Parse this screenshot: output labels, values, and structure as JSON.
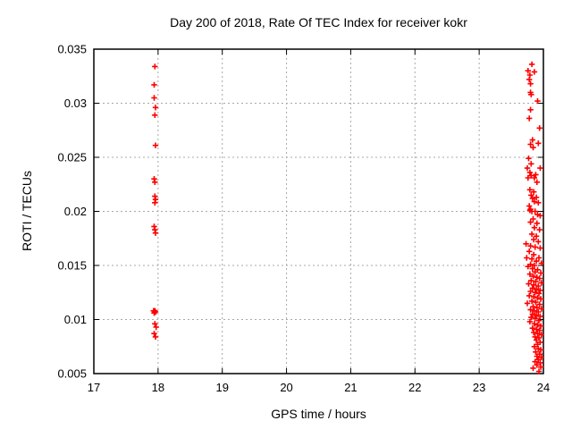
{
  "chart_data": {
    "type": "scatter",
    "title": "Day 200 of 2018, Rate Of TEC Index for receiver kokr",
    "xlabel": "GPS time / hours",
    "ylabel": "ROTI / TECUs",
    "xlim": [
      17,
      24
    ],
    "ylim": [
      0.005,
      0.035
    ],
    "xticks": [
      17,
      18,
      19,
      20,
      21,
      22,
      23,
      24
    ],
    "xtick_labels": [
      "17",
      "18",
      "19",
      "20",
      "21",
      "22",
      "23",
      "24"
    ],
    "yticks": [
      0.005,
      0.01,
      0.015,
      0.02,
      0.025,
      0.03,
      0.035
    ],
    "ytick_labels": [
      "0.005",
      "0.01",
      "0.015",
      "0.02",
      "0.025",
      "0.03",
      "0.035"
    ],
    "grid": true,
    "legend": "none",
    "marker": "plus",
    "colors": {
      "points": "#ff0000",
      "grid": "#a8a8a8",
      "border": "#000000",
      "background": "#ffffff",
      "text": "#000000"
    },
    "series": [
      {
        "name": "ROTI",
        "points": [
          [
            17.95,
            0.0334
          ],
          [
            17.94,
            0.0317
          ],
          [
            17.94,
            0.0305
          ],
          [
            17.96,
            0.0296
          ],
          [
            17.95,
            0.0289
          ],
          [
            17.96,
            0.0261
          ],
          [
            17.94,
            0.023
          ],
          [
            17.95,
            0.0227
          ],
          [
            17.95,
            0.0214
          ],
          [
            17.96,
            0.0211
          ],
          [
            17.95,
            0.0208
          ],
          [
            17.94,
            0.0186
          ],
          [
            17.95,
            0.0183
          ],
          [
            17.96,
            0.018
          ],
          [
            17.93,
            0.0108
          ],
          [
            17.95,
            0.0108
          ],
          [
            17.96,
            0.0107
          ],
          [
            17.95,
            0.0107
          ],
          [
            17.94,
            0.0106
          ],
          [
            17.95,
            0.0096
          ],
          [
            17.97,
            0.0093
          ],
          [
            17.94,
            0.0087
          ],
          [
            17.96,
            0.0084
          ],
          [
            23.82,
            0.0336
          ],
          [
            23.76,
            0.033
          ],
          [
            23.86,
            0.0329
          ],
          [
            23.79,
            0.0326
          ],
          [
            23.78,
            0.0322
          ],
          [
            23.8,
            0.0318
          ],
          [
            23.8,
            0.031
          ],
          [
            23.81,
            0.0308
          ],
          [
            23.91,
            0.0302
          ],
          [
            23.8,
            0.0294
          ],
          [
            23.78,
            0.0286
          ],
          [
            23.94,
            0.0277
          ],
          [
            23.83,
            0.0266
          ],
          [
            23.92,
            0.0263
          ],
          [
            23.8,
            0.0262
          ],
          [
            23.84,
            0.0259
          ],
          [
            23.77,
            0.0249
          ],
          [
            23.81,
            0.0244
          ],
          [
            23.75,
            0.024
          ],
          [
            23.95,
            0.024
          ],
          [
            23.79,
            0.0236
          ],
          [
            23.88,
            0.0234
          ],
          [
            23.81,
            0.0233
          ],
          [
            23.76,
            0.0231
          ],
          [
            23.86,
            0.0231
          ],
          [
            23.9,
            0.0227
          ],
          [
            23.79,
            0.022
          ],
          [
            23.85,
            0.0218
          ],
          [
            23.81,
            0.0215
          ],
          [
            23.89,
            0.0213
          ],
          [
            23.83,
            0.0212
          ],
          [
            23.86,
            0.0209
          ],
          [
            23.92,
            0.0208
          ],
          [
            23.78,
            0.0205
          ],
          [
            23.8,
            0.0202
          ],
          [
            23.79,
            0.0201
          ],
          [
            23.82,
            0.02
          ],
          [
            23.87,
            0.02
          ],
          [
            23.91,
            0.0197
          ],
          [
            23.95,
            0.0196
          ],
          [
            23.84,
            0.0193
          ],
          [
            23.8,
            0.019
          ],
          [
            23.9,
            0.0189
          ],
          [
            23.86,
            0.0185
          ],
          [
            23.94,
            0.0183
          ],
          [
            23.82,
            0.0179
          ],
          [
            23.89,
            0.0177
          ],
          [
            23.85,
            0.0174
          ],
          [
            23.92,
            0.0172
          ],
          [
            23.73,
            0.017
          ],
          [
            23.8,
            0.0168
          ],
          [
            23.87,
            0.0167
          ],
          [
            23.95,
            0.0166
          ],
          [
            23.78,
            0.0163
          ],
          [
            23.85,
            0.016
          ],
          [
            23.74,
            0.0157
          ],
          [
            23.93,
            0.0157
          ],
          [
            23.82,
            0.0156
          ],
          [
            23.89,
            0.0154
          ],
          [
            23.97,
            0.0152
          ],
          [
            23.8,
            0.0151
          ],
          [
            23.86,
            0.015
          ],
          [
            23.76,
            0.0149
          ],
          [
            23.83,
            0.0147
          ],
          [
            23.91,
            0.0146
          ],
          [
            23.87,
            0.0144
          ],
          [
            23.96,
            0.0143
          ],
          [
            23.79,
            0.0142
          ],
          [
            23.84,
            0.014
          ],
          [
            23.9,
            0.0139
          ],
          [
            23.94,
            0.0138
          ],
          [
            23.81,
            0.0136
          ],
          [
            23.88,
            0.0135
          ],
          [
            23.97,
            0.0134
          ],
          [
            23.77,
            0.0133
          ],
          [
            23.85,
            0.0132
          ],
          [
            23.92,
            0.0131
          ],
          [
            23.83,
            0.0129
          ],
          [
            23.89,
            0.0128
          ],
          [
            23.95,
            0.0127
          ],
          [
            23.8,
            0.0126
          ],
          [
            23.87,
            0.0125
          ],
          [
            23.93,
            0.0124
          ],
          [
            23.78,
            0.0122
          ],
          [
            23.85,
            0.0121
          ],
          [
            23.91,
            0.012
          ],
          [
            23.96,
            0.0119
          ],
          [
            23.82,
            0.0117
          ],
          [
            23.88,
            0.0116
          ],
          [
            23.75,
            0.0115
          ],
          [
            23.94,
            0.0114
          ],
          [
            23.84,
            0.0112
          ],
          [
            23.9,
            0.0111
          ],
          [
            23.97,
            0.011
          ],
          [
            23.8,
            0.0109
          ],
          [
            23.86,
            0.0108
          ],
          [
            23.92,
            0.0107
          ],
          [
            23.83,
            0.0105
          ],
          [
            23.89,
            0.0104
          ],
          [
            23.95,
            0.0103
          ],
          [
            23.81,
            0.0102
          ],
          [
            23.87,
            0.0101
          ],
          [
            23.93,
            0.0099
          ],
          [
            23.79,
            0.0098
          ],
          [
            23.86,
            0.0096
          ],
          [
            23.91,
            0.0095
          ],
          [
            23.96,
            0.0094
          ],
          [
            23.83,
            0.0092
          ],
          [
            23.89,
            0.0091
          ],
          [
            23.94,
            0.009
          ],
          [
            23.85,
            0.0088
          ],
          [
            23.91,
            0.0087
          ],
          [
            23.97,
            0.0086
          ],
          [
            23.87,
            0.0084
          ],
          [
            23.93,
            0.0083
          ],
          [
            23.89,
            0.0081
          ],
          [
            23.95,
            0.0079
          ],
          [
            23.91,
            0.0077
          ],
          [
            23.86,
            0.0075
          ],
          [
            23.92,
            0.0073
          ],
          [
            23.96,
            0.0072
          ],
          [
            23.88,
            0.007
          ],
          [
            23.94,
            0.0068
          ],
          [
            23.9,
            0.0066
          ],
          [
            23.97,
            0.0065
          ],
          [
            23.92,
            0.0063
          ],
          [
            23.87,
            0.0061
          ],
          [
            23.95,
            0.006
          ],
          [
            23.9,
            0.0058
          ],
          [
            23.96,
            0.0056
          ],
          [
            23.84,
            0.0055
          ],
          [
            23.93,
            0.0052
          ]
        ]
      }
    ]
  }
}
